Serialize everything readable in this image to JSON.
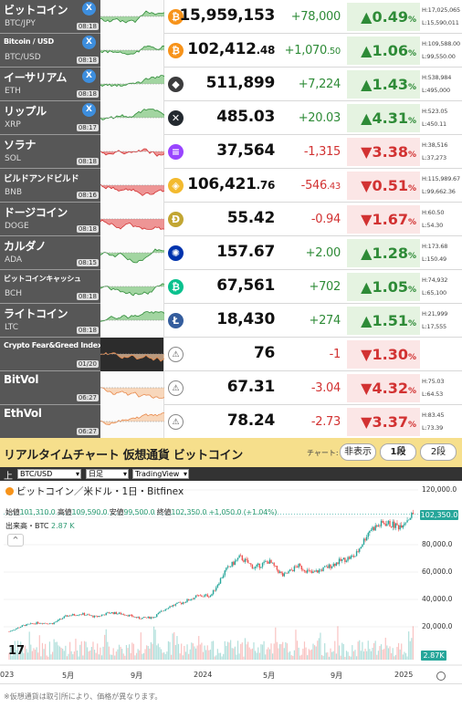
{
  "coins": [
    {
      "name": "ビットコイン",
      "symbol": "BTC/JPY",
      "time": "08:18",
      "x": true,
      "icon": "bitcoin-icon",
      "icon_color": "#f7931a",
      "icon_glyph": "₿",
      "price_int": "15,959,153",
      "price_dec": "",
      "change_int": "+78,000",
      "change_dec": "",
      "pct": "0.49",
      "dir": "up",
      "high": "H:17,025,065",
      "low": "L:15,590,011"
    },
    {
      "name": "Bitcoin / USD",
      "symbol": "BTC/USD",
      "time": "08:18",
      "x": true,
      "icon": "bitcoin-icon",
      "icon_color": "#f7931a",
      "icon_glyph": "₿",
      "price_int": "102,412",
      "price_dec": ".48",
      "change_int": "+1,070",
      "change_dec": ".50",
      "pct": "1.06",
      "dir": "up",
      "high": "H:109,588.00",
      "low": "L:99,550.00"
    },
    {
      "name": "イーサリアム",
      "symbol": "ETH",
      "time": "08:18",
      "x": true,
      "icon": "ethereum-icon",
      "icon_color": "#3c3c3d",
      "icon_glyph": "◆",
      "price_int": "511,899",
      "price_dec": "",
      "change_int": "+7,224",
      "change_dec": "",
      "pct": "1.43",
      "dir": "up",
      "high": "H:538,984",
      "low": "L:495,000"
    },
    {
      "name": "リップル",
      "symbol": "XRP",
      "time": "08:17",
      "x": true,
      "icon": "xrp-icon",
      "icon_color": "#23292f",
      "icon_glyph": "✕",
      "price_int": "485.03",
      "price_dec": "",
      "change_int": "+20.03",
      "change_dec": "",
      "pct": "4.31",
      "dir": "up",
      "high": "H:523.05",
      "low": "L:450.11"
    },
    {
      "name": "ソラナ",
      "symbol": "SOL",
      "time": "08:18",
      "x": false,
      "icon": "solana-icon",
      "icon_color": "#9945ff",
      "icon_glyph": "≡",
      "price_int": "37,564",
      "price_dec": "",
      "change_int": "-1,315",
      "change_dec": "",
      "pct": "3.38",
      "dir": "down",
      "high": "H:38,516",
      "low": "L:37,273"
    },
    {
      "name": "ビルドアンドビルド",
      "symbol": "BNB",
      "time": "08:16",
      "x": false,
      "icon": "bnb-icon",
      "icon_color": "#f3ba2f",
      "icon_glyph": "◈",
      "price_int": "106,421",
      "price_dec": ".76",
      "change_int": "-546",
      "change_dec": ".43",
      "pct": "0.51",
      "dir": "down",
      "high": "H:115,989.67",
      "low": "L:99,662.36"
    },
    {
      "name": "ドージコイン",
      "symbol": "DOGE",
      "time": "08:18",
      "x": false,
      "icon": "dogecoin-icon",
      "icon_color": "#c2a633",
      "icon_glyph": "Ð",
      "price_int": "55.42",
      "price_dec": "",
      "change_int": "-0.94",
      "change_dec": "",
      "pct": "1.67",
      "dir": "down",
      "high": "H:60.50",
      "low": "L:54.30"
    },
    {
      "name": "カルダノ",
      "symbol": "ADA",
      "time": "08:15",
      "x": false,
      "icon": "cardano-icon",
      "icon_color": "#0033ad",
      "icon_glyph": "✺",
      "price_int": "157.67",
      "price_dec": "",
      "change_int": "+2.00",
      "change_dec": "",
      "pct": "1.28",
      "dir": "up",
      "high": "H:173.68",
      "low": "L:150.49"
    },
    {
      "name": "ビットコインキャッシュ",
      "symbol": "BCH",
      "time": "08:18",
      "x": false,
      "icon": "bitcoin-cash-icon",
      "icon_color": "#0ac18e",
      "icon_glyph": "₿",
      "price_int": "67,561",
      "price_dec": "",
      "change_int": "+702",
      "change_dec": "",
      "pct": "1.05",
      "dir": "up",
      "high": "H:74,932",
      "low": "L:65,100"
    },
    {
      "name": "ライトコイン",
      "symbol": "LTC",
      "time": "08:18",
      "x": false,
      "icon": "litecoin-icon",
      "icon_color": "#345d9d",
      "icon_glyph": "Ł",
      "price_int": "18,430",
      "price_dec": "",
      "change_int": "+274",
      "change_dec": "",
      "pct": "1.51",
      "dir": "up",
      "high": "H:21,999",
      "low": "L:17,555"
    },
    {
      "name": "Crypto Fear&Greed Index",
      "symbol": "",
      "time": "01/20",
      "x": false,
      "icon": "chart-alert-icon",
      "icon_color": "",
      "icon_glyph": "",
      "price_int": "76",
      "price_dec": "",
      "change_int": "-1",
      "change_dec": "",
      "pct": "1.30",
      "dir": "down",
      "high": "",
      "low": ""
    },
    {
      "name": "BitVol",
      "symbol": "",
      "time": "06:27",
      "x": false,
      "icon": "chart-alert-icon",
      "icon_color": "",
      "icon_glyph": "",
      "price_int": "67.31",
      "price_dec": "",
      "change_int": "-3.04",
      "change_dec": "",
      "pct": "4.32",
      "dir": "down",
      "high": "H:75.03",
      "low": "L:64.53"
    },
    {
      "name": "EthVol",
      "symbol": "",
      "time": "06:27",
      "x": false,
      "icon": "chart-alert-icon",
      "icon_color": "",
      "icon_glyph": "",
      "price_int": "78.24",
      "price_dec": "",
      "change_int": "-2.73",
      "change_dec": "",
      "pct": "3.37",
      "dir": "down",
      "high": "H:83.45",
      "low": "L:73.39"
    }
  ],
  "pct_unit": "%",
  "x_glyph": "X",
  "chart_header": {
    "title": "リアルタイムチャート 仮想通貨 ビットコイン",
    "label": "チャート:",
    "hide": "非表示",
    "one": "1段",
    "two": "2段"
  },
  "toolbar": {
    "label": "上",
    "pair": "BTC/USD",
    "interval": "日足",
    "provider": "TradingView"
  },
  "tv": {
    "title": "ビットコイン／米ドル・1日・Bitfinex",
    "ohlc_open_label": "始値",
    "ohlc_open": "101,310.0",
    "ohlc_high_label": "高値",
    "ohlc_high": "109,590.0",
    "ohlc_low_label": "安値",
    "ohlc_low": "99,500.0",
    "ohlc_close_label": "終値",
    "ohlc_close": "102,350.0",
    "ohlc_change": "+1,050.0 (+1.04%)",
    "vol_label": "出来高・BTC",
    "vol_value": "2.87 K",
    "collapse": "^",
    "price_tag": "102,350.0",
    "vol_tag": "2.87K",
    "logo": "17",
    "up_color": "#26a69a",
    "down_color": "#ef5350"
  },
  "chart_data": {
    "type": "line",
    "title": "ビットコイン／米ドル・1日・Bitfinex",
    "x_ticks": [
      "023",
      "5月",
      "9月",
      "2024",
      "5月",
      "9月",
      "2025"
    ],
    "y_ticks": [
      "120,000.0",
      "80,000.0",
      "60,000.0",
      "40,000.0",
      "20,000.0"
    ],
    "ylim": [
      0,
      120000
    ],
    "series": [
      {
        "name": "BTC/USD",
        "values": [
          16600,
          21000,
          23000,
          22400,
          28000,
          29500,
          27200,
          30400,
          29200,
          26200,
          27000,
          34500,
          37700,
          42200,
          43000,
          61200,
          71000,
          63000,
          68000,
          57000,
          64600,
          59000,
          63300,
          68300,
          72000,
          91000,
          96000,
          93400,
          102350
        ]
      }
    ]
  },
  "footer": "※仮想通貨は取引所により、価格が異なります。"
}
